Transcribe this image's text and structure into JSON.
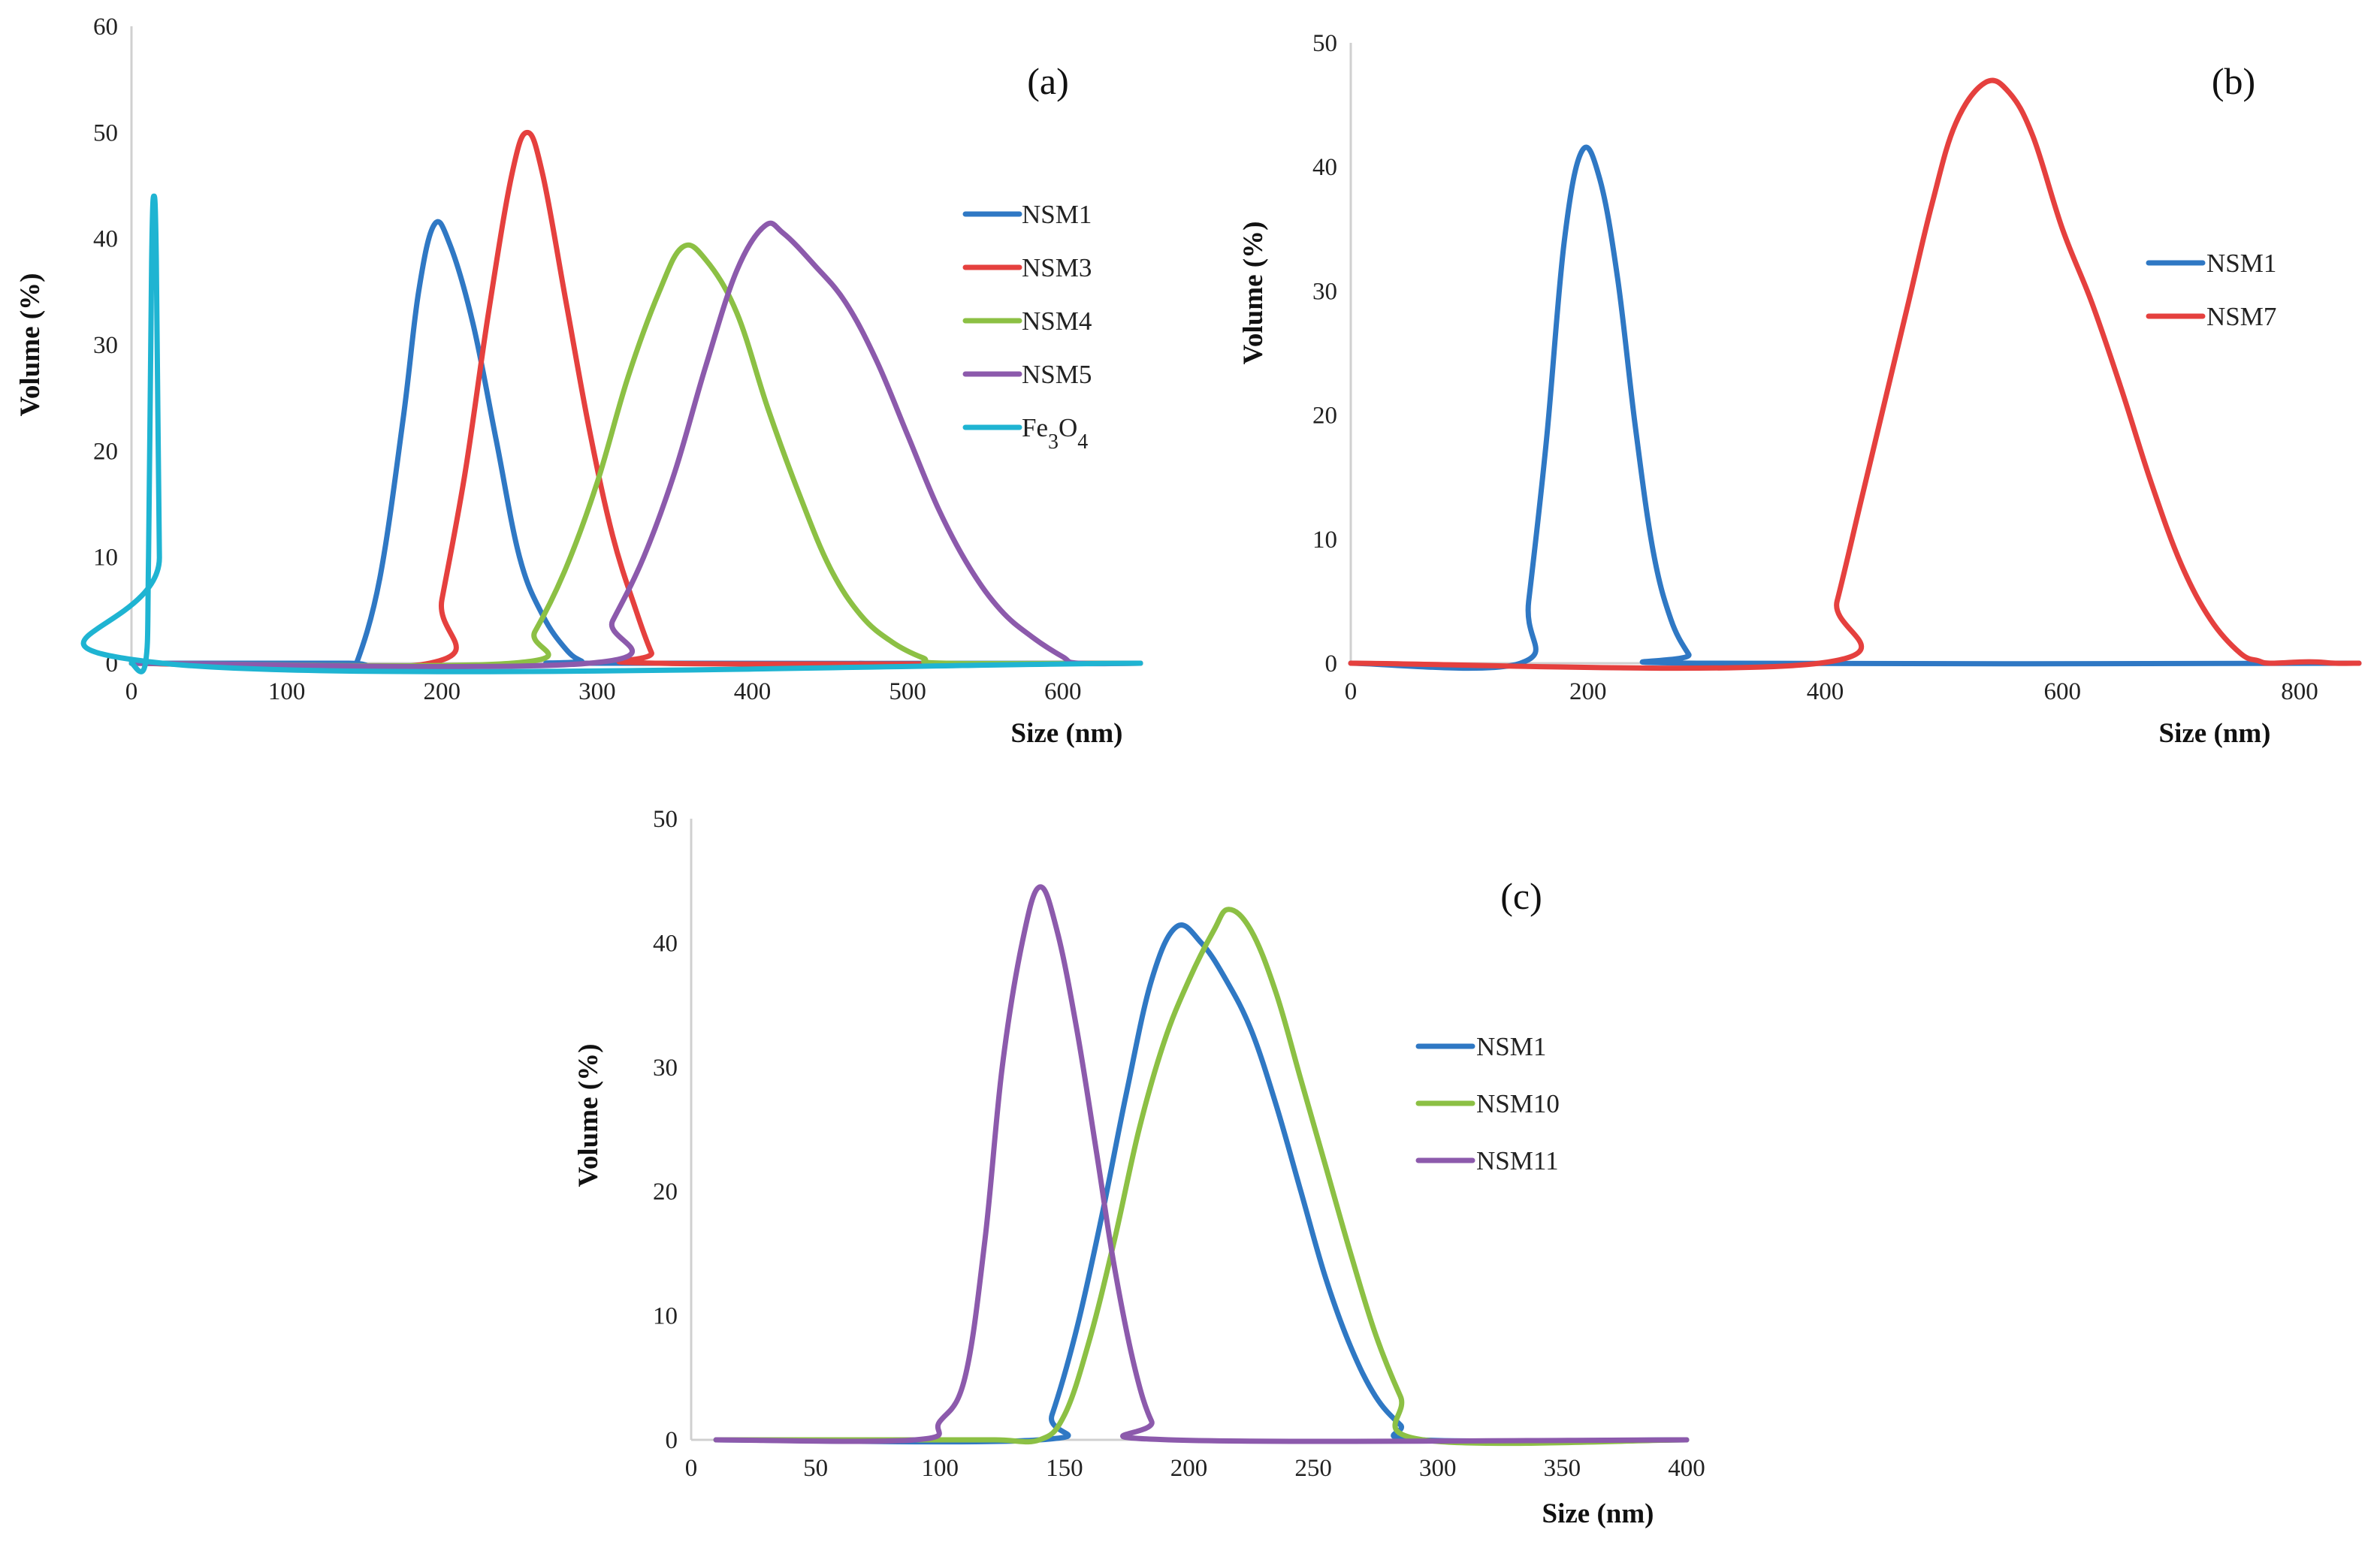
{
  "chart_data": [
    {
      "type": "line",
      "panel_label": "(a)",
      "xlabel": "Size (nm)",
      "ylabel": "Volume (%)",
      "xlim": [
        0,
        650
      ],
      "ylim": [
        0,
        60
      ],
      "xticks": [
        "0",
        "100",
        "200",
        "300",
        "400",
        "500",
        "600"
      ],
      "yticks": [
        "0",
        "10",
        "20",
        "30",
        "40",
        "50",
        "60"
      ],
      "legend_position": "right",
      "series": [
        {
          "name": "NSM1",
          "color": "#2f78c4",
          "x": [
            0,
            140,
            145,
            160,
            175,
            185,
            195,
            205,
            220,
            235,
            250,
            265,
            280,
            290,
            297,
            650
          ],
          "y": [
            0,
            0,
            0,
            8,
            23,
            35,
            41.3,
            39.5,
            32,
            21,
            10,
            4.5,
            1.3,
            0.2,
            0,
            0
          ]
        },
        {
          "name": "NSM3",
          "color": "#e5403e",
          "x": [
            0,
            192,
            200,
            215,
            230,
            245,
            255,
            265,
            280,
            295,
            310,
            325,
            335,
            340,
            650
          ],
          "y": [
            0,
            0,
            6,
            18,
            33,
            46,
            50,
            46,
            34,
            22,
            12,
            5,
            1,
            0,
            0
          ]
        },
        {
          "name": "NSM4",
          "color": "#8cc044",
          "x": [
            0,
            245,
            260,
            280,
            300,
            320,
            340,
            355,
            370,
            390,
            410,
            430,
            450,
            470,
            490,
            510,
            525,
            650
          ],
          "y": [
            0,
            0,
            3,
            9,
            17,
            27,
            35,
            39.2,
            38,
            33,
            24,
            16,
            9,
            4.5,
            2,
            0.5,
            0,
            0
          ]
        },
        {
          "name": "NSM5",
          "color": "#8c5aac",
          "x": [
            0,
            295,
            310,
            330,
            350,
            370,
            390,
            408,
            420,
            440,
            460,
            480,
            500,
            520,
            540,
            560,
            580,
            600,
            610,
            650
          ],
          "y": [
            0,
            0,
            4,
            10,
            18,
            28,
            37,
            41.2,
            40.5,
            37.5,
            34,
            28.5,
            21.5,
            14.5,
            9,
            5,
            2.5,
            0.6,
            0,
            0
          ]
        },
        {
          "name": "Fe₃O₄",
          "color": "#1fb4d2",
          "x": [
            0,
            9,
            11,
            13,
            14.5,
            16,
            18,
            20,
            650
          ],
          "y": [
            0,
            0,
            10,
            38,
            44,
            38,
            10,
            0,
            0
          ]
        }
      ]
    },
    {
      "type": "line",
      "panel_label": "(b)",
      "xlabel": "Size (nm)",
      "ylabel": "Volume (%)",
      "xlim": [
        0,
        850
      ],
      "ylim": [
        0,
        50
      ],
      "xticks": [
        "0",
        "200",
        "400",
        "600",
        "800"
      ],
      "yticks": [
        "0",
        "10",
        "20",
        "30",
        "40",
        "50"
      ],
      "legend_position": "right",
      "series": [
        {
          "name": "NSM1",
          "color": "#2f78c4",
          "x": [
            0,
            143,
            150,
            165,
            180,
            195,
            210,
            225,
            240,
            255,
            270,
            285,
            292,
            850
          ],
          "y": [
            0,
            0,
            5,
            18,
            34,
            41.3,
            39,
            31,
            19,
            9,
            3.5,
            0.7,
            0,
            0
          ]
        },
        {
          "name": "NSM7",
          "color": "#e5403e",
          "x": [
            0,
            395,
            410,
            430,
            450,
            470,
            490,
            510,
            535,
            555,
            575,
            600,
            625,
            650,
            675,
            700,
            725,
            750,
            765,
            775,
            800,
            815,
            830,
            850
          ],
          "y": [
            0,
            0,
            5,
            13,
            21,
            29,
            37,
            43.5,
            46.8,
            46,
            42.5,
            35,
            29,
            22,
            14.5,
            8,
            3.5,
            0.8,
            0.2,
            0,
            0.1,
            0.1,
            0,
            0
          ]
        }
      ]
    },
    {
      "type": "line",
      "panel_label": "(c)",
      "xlabel": "Size (nm)",
      "ylabel": "Volume (%)",
      "xlim": [
        0,
        400
      ],
      "ylim": [
        0,
        50
      ],
      "xticks": [
        "0",
        "50",
        "100",
        "150",
        "200",
        "250",
        "300",
        "350",
        "400"
      ],
      "yticks": [
        "0",
        "10",
        "20",
        "30",
        "40",
        "50"
      ],
      "legend_position": "right",
      "series": [
        {
          "name": "NSM1",
          "color": "#2f78c4",
          "x": [
            10,
            140,
            145,
            155,
            165,
            175,
            185,
            195,
            205,
            215,
            225,
            235,
            245,
            255,
            265,
            275,
            285,
            293,
            400
          ],
          "y": [
            0,
            0,
            2,
            9,
            18,
            28,
            37,
            41.3,
            40,
            37,
            33,
            27,
            20,
            13,
            7.5,
            3.5,
            1.2,
            0,
            0
          ]
        },
        {
          "name": "NSM10",
          "color": "#8cc044",
          "x": [
            10,
            90,
            122,
            140,
            150,
            160,
            170,
            180,
            190,
            200,
            210,
            216,
            225,
            235,
            245,
            255,
            265,
            275,
            285,
            294,
            400
          ],
          "y": [
            0,
            0,
            0,
            0,
            2,
            8,
            16,
            25,
            32,
            37,
            41,
            42.7,
            41,
            36,
            29,
            22,
            15,
            8.5,
            3.5,
            0,
            0
          ]
        },
        {
          "name": "NSM11",
          "color": "#8c5aac",
          "x": [
            10,
            90,
            100,
            110,
            118,
            125,
            133,
            140,
            147,
            155,
            163,
            170,
            178,
            185,
            192,
            400
          ],
          "y": [
            0,
            0,
            1.5,
            5,
            16,
            30,
            40,
            44.5,
            41,
            33,
            23,
            14,
            6,
            1.5,
            0,
            0
          ]
        }
      ]
    }
  ]
}
